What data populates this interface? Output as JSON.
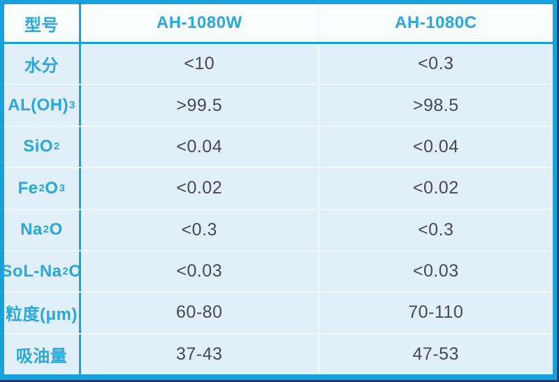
{
  "table": {
    "columns": [
      "型号",
      "AH-1080W",
      "AH-1080C"
    ],
    "rows": [
      {
        "label": "水分",
        "ah1080w": "<10",
        "ah1080c": "<0.3"
      },
      {
        "label": "AL(OH)_3",
        "ah1080w": ">99.5",
        "ah1080c": ">98.5"
      },
      {
        "label": "SiO_2",
        "ah1080w": "<0.04",
        "ah1080c": "<0.04"
      },
      {
        "label": "Fe_2O_3",
        "ah1080w": "<0.02",
        "ah1080c": "<0.02"
      },
      {
        "label": "Na_2O",
        "ah1080w": "<0.3",
        "ah1080c": "<0.3"
      },
      {
        "label": "SoL-Na_2O",
        "ah1080w": "<0.03",
        "ah1080c": "<0.03"
      },
      {
        "label": "粒度(μm)",
        "ah1080w": "60-80",
        "ah1080c": "70-110"
      },
      {
        "label": "吸油量",
        "ah1080w": "37-43",
        "ah1080c": "47-53"
      }
    ],
    "colors": {
      "accent_cyan": "#17a2db",
      "label_text": "#27a9e0",
      "value_text": "#454a50",
      "row_background": "#e0eff8",
      "header_background": "#f9fdff",
      "separator": "#f0f8fc",
      "shadow_navy": "#1d3e74"
    }
  }
}
